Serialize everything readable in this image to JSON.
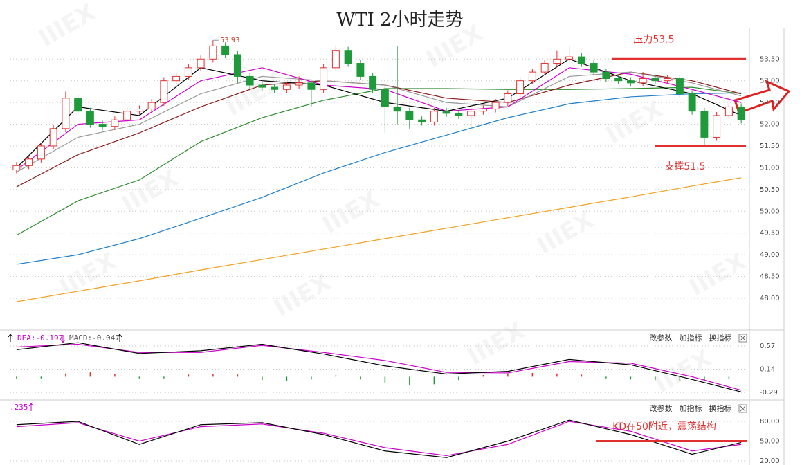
{
  "chart_data": [
    {
      "type": "candlestick",
      "title": "WTI 2小时走势",
      "watermark": "IIIEX",
      "xlim": [
        -0.5,
        59.5
      ],
      "open": [
        50.95,
        51.05,
        51.2,
        51.5,
        51.9,
        52.6,
        52.3,
        52.0,
        51.95,
        52.1,
        52.3,
        52.35,
        52.5,
        53.0,
        53.1,
        53.3,
        53.5,
        53.8,
        53.6,
        53.1,
        52.9,
        52.85,
        52.8,
        52.9,
        52.95,
        52.8,
        53.3,
        53.7,
        53.4,
        53.1,
        52.8,
        52.4,
        52.3,
        52.1,
        52.05,
        52.3,
        52.25,
        52.2,
        52.3,
        52.35,
        52.5,
        52.7,
        53.0,
        53.2,
        53.4,
        53.5,
        53.55,
        53.4,
        53.2,
        53.05,
        53.0,
        52.95,
        53.05,
        53.0,
        53.05,
        52.7,
        52.3,
        51.7,
        52.2,
        52.4
      ],
      "high": [
        51.13,
        51.28,
        51.58,
        51.98,
        52.75,
        52.68,
        52.38,
        52.08,
        52.18,
        52.38,
        52.43,
        52.58,
        53.08,
        53.18,
        53.38,
        53.58,
        53.93,
        53.88,
        53.68,
        53.18,
        52.98,
        52.93,
        52.98,
        53.1,
        53.03,
        53.38,
        53.8,
        53.78,
        53.48,
        53.18,
        52.88,
        53.8,
        52.38,
        52.18,
        52.38,
        52.38,
        52.33,
        52.38,
        52.43,
        52.58,
        52.78,
        53.08,
        53.28,
        53.48,
        53.7,
        53.8,
        53.63,
        53.48,
        53.28,
        53.13,
        53.08,
        53.2,
        53.13,
        53.13,
        53.13,
        52.78,
        52.38,
        52.28,
        52.48,
        52.48
      ],
      "low": [
        50.87,
        50.97,
        51.12,
        51.42,
        51.82,
        52.22,
        51.92,
        51.87,
        51.87,
        52.02,
        52.22,
        52.27,
        52.42,
        52.92,
        53.02,
        53.22,
        53.42,
        53.52,
        52.95,
        52.82,
        52.77,
        52.72,
        52.72,
        52.82,
        52.4,
        52.72,
        53.22,
        53.32,
        53.02,
        52.72,
        51.8,
        52.0,
        51.9,
        51.97,
        51.97,
        52.17,
        52.12,
        51.95,
        52.22,
        52.27,
        52.42,
        52.62,
        52.92,
        53.12,
        53.32,
        53.42,
        53.32,
        53.12,
        52.97,
        52.92,
        52.87,
        52.87,
        52.92,
        52.92,
        52.62,
        52.22,
        51.5,
        51.62,
        52.12,
        52.02
      ],
      "close": [
        51.05,
        51.2,
        51.5,
        51.9,
        52.6,
        52.3,
        52.0,
        51.95,
        52.1,
        52.3,
        52.35,
        52.5,
        53.0,
        53.1,
        53.3,
        53.5,
        53.8,
        53.6,
        53.1,
        52.9,
        52.85,
        52.8,
        52.9,
        52.95,
        52.8,
        53.3,
        53.7,
        53.4,
        53.1,
        52.8,
        52.4,
        52.3,
        52.1,
        52.05,
        52.3,
        52.25,
        52.2,
        52.3,
        52.35,
        52.5,
        52.7,
        53.0,
        53.2,
        53.4,
        53.5,
        53.55,
        53.4,
        53.2,
        53.05,
        53.0,
        52.95,
        53.05,
        53.0,
        53.05,
        52.7,
        52.3,
        51.7,
        52.2,
        52.4,
        52.1
      ],
      "up_color": "#e03030",
      "down_color": "#1f9a3a",
      "high_label": 53.93,
      "series": [
        {
          "color": "#f0a020",
          "x": [
            0,
            5,
            10,
            15,
            20,
            25,
            30,
            35,
            40,
            45,
            50,
            55,
            59
          ],
          "values": [
            47.92,
            48.16,
            48.4,
            48.65,
            48.89,
            49.13,
            49.37,
            49.61,
            49.85,
            50.09,
            50.33,
            50.58,
            50.77
          ]
        },
        {
          "color": "#1f7fc9",
          "x": [
            0,
            5,
            10,
            15,
            20,
            25,
            30,
            35,
            40,
            45,
            50,
            55,
            59
          ],
          "values": [
            48.78,
            49.0,
            49.37,
            49.84,
            50.32,
            50.88,
            51.35,
            51.75,
            52.15,
            52.47,
            52.63,
            52.7,
            52.72
          ]
        },
        {
          "color": "#2e8b2e",
          "x": [
            0,
            5,
            10,
            15,
            20,
            25,
            30,
            35,
            40,
            45,
            50,
            55,
            59
          ],
          "values": [
            49.45,
            50.24,
            50.72,
            51.6,
            52.15,
            52.55,
            52.82,
            52.82,
            52.8,
            52.8,
            52.82,
            52.85,
            52.7
          ]
        },
        {
          "color": "#8b1a1a",
          "x": [
            0,
            5,
            10,
            15,
            20,
            25,
            30,
            35,
            40,
            45,
            50,
            55,
            59
          ],
          "values": [
            50.56,
            51.3,
            51.8,
            52.4,
            52.9,
            53.0,
            52.9,
            52.6,
            52.5,
            52.9,
            53.2,
            53.0,
            52.7
          ]
        },
        {
          "color": "#999999",
          "x": [
            0,
            5,
            10,
            15,
            20,
            25,
            30,
            35,
            40,
            45,
            50,
            55,
            59
          ],
          "values": [
            50.9,
            51.7,
            52.0,
            52.7,
            53.1,
            53.0,
            52.9,
            52.5,
            52.4,
            53.1,
            53.2,
            52.95,
            52.65
          ]
        },
        {
          "color": "#cc00cc",
          "x": [
            0,
            5,
            10,
            15,
            20,
            25,
            30,
            35,
            40,
            45,
            50,
            55,
            59
          ],
          "values": [
            50.95,
            52.0,
            52.1,
            53.0,
            53.3,
            52.9,
            52.8,
            52.3,
            52.4,
            53.3,
            53.15,
            52.8,
            52.5
          ]
        },
        {
          "color": "#000000",
          "x": [
            0,
            5,
            10,
            15,
            20,
            25,
            30,
            35,
            40,
            45,
            50,
            55,
            59
          ],
          "values": [
            51.0,
            52.4,
            52.2,
            53.3,
            53.0,
            52.9,
            52.5,
            52.3,
            52.6,
            53.5,
            53.0,
            52.7,
            52.2
          ]
        }
      ],
      "levels": [
        {
          "label": "压力53.5",
          "value": 53.5,
          "color": "#e03030"
        },
        {
          "label": "支撑51.5",
          "value": 51.5,
          "color": "#e03030"
        }
      ],
      "ylim": [
        47.3,
        54.22
      ],
      "yticks": [
        {
          "value": 48,
          "label": "48.00"
        },
        {
          "value": 48.5,
          "label": "48.50"
        },
        {
          "value": 49,
          "label": "49.00"
        },
        {
          "value": 49.5,
          "label": "49.50"
        },
        {
          "value": 50,
          "label": "50.00"
        },
        {
          "value": 50.5,
          "label": "50.50"
        },
        {
          "value": 51,
          "label": "51.00"
        },
        {
          "value": 51.5,
          "label": "51.50"
        },
        {
          "value": 52,
          "label": "52.00"
        },
        {
          "value": 52.5,
          "label": "52.50"
        },
        {
          "value": 53,
          "label": "53.00"
        },
        {
          "value": 53.5,
          "label": "53.50"
        }
      ],
      "grid": true
    },
    {
      "type": "macd",
      "labels": [
        "DEA:-0.197",
        "MACD:-0.047"
      ],
      "buttons": [
        "改参数",
        "加指标",
        "换指标"
      ],
      "xlim": [
        -0.5,
        59.5
      ],
      "bar_x": [
        0,
        2,
        4,
        6,
        8,
        10,
        12,
        14,
        16,
        18,
        20,
        22,
        24,
        26,
        28,
        30,
        32,
        34,
        36,
        38,
        40,
        42,
        44,
        46,
        48,
        50,
        52,
        54,
        56,
        58
      ],
      "bars": [
        -0.03,
        -0.03,
        0.06,
        0.08,
        0.05,
        -0.03,
        -0.03,
        0.04,
        0.05,
        0.04,
        -0.06,
        -0.08,
        -0.05,
        0.03,
        -0.05,
        -0.12,
        -0.16,
        -0.14,
        -0.06,
        0.03,
        0.06,
        0.07,
        0.06,
        0.04,
        -0.03,
        -0.05,
        -0.06,
        -0.08,
        -0.06,
        -0.04
      ],
      "up_color": "#e03030",
      "down_color": "#1f9a3a",
      "series": [
        {
          "color": "#cc00cc",
          "x": [
            0,
            5,
            10,
            15,
            20,
            25,
            30,
            35,
            40,
            45,
            50,
            55,
            59
          ],
          "values": [
            0.55,
            0.6,
            0.45,
            0.45,
            0.58,
            0.45,
            0.3,
            0.08,
            0.07,
            0.28,
            0.25,
            0.0,
            -0.25
          ]
        },
        {
          "color": "#000000",
          "x": [
            0,
            5,
            10,
            15,
            20,
            25,
            30,
            35,
            40,
            45,
            50,
            55,
            59
          ],
          "values": [
            0.5,
            0.63,
            0.43,
            0.48,
            0.6,
            0.42,
            0.2,
            0.05,
            0.1,
            0.32,
            0.22,
            -0.05,
            -0.28
          ]
        }
      ],
      "ylim": [
        -0.43,
        0.85
      ],
      "yticks": [
        0.57,
        0.14,
        -0.29
      ]
    },
    {
      "type": "kd",
      "label": ".235",
      "buttons": [
        "改参数",
        "加指标",
        "换指标"
      ],
      "xlim": [
        -0.5,
        59.5
      ],
      "series": [
        {
          "color": "#cc00cc",
          "x": [
            0,
            5,
            10,
            15,
            20,
            25,
            30,
            35,
            40,
            45,
            50,
            55,
            59
          ],
          "values": [
            72,
            78,
            50,
            72,
            76,
            62,
            40,
            28,
            45,
            80,
            65,
            35,
            45
          ]
        },
        {
          "color": "#000000",
          "x": [
            0,
            5,
            10,
            15,
            20,
            25,
            30,
            35,
            40,
            45,
            50,
            55,
            59
          ],
          "values": [
            75,
            80,
            45,
            75,
            78,
            60,
            35,
            25,
            50,
            82,
            60,
            30,
            48
          ]
        }
      ],
      "annotation": "KD在50附近，震荡结构",
      "level": {
        "value": 50,
        "color": "#e03030"
      },
      "ylim": [
        13.7,
        110.5
      ],
      "yticks": [
        {
          "value": 80,
          "label": "80.00"
        },
        {
          "value": 50,
          "label": "50.00"
        },
        {
          "value": 20,
          "label": "20.00"
        }
      ]
    }
  ]
}
